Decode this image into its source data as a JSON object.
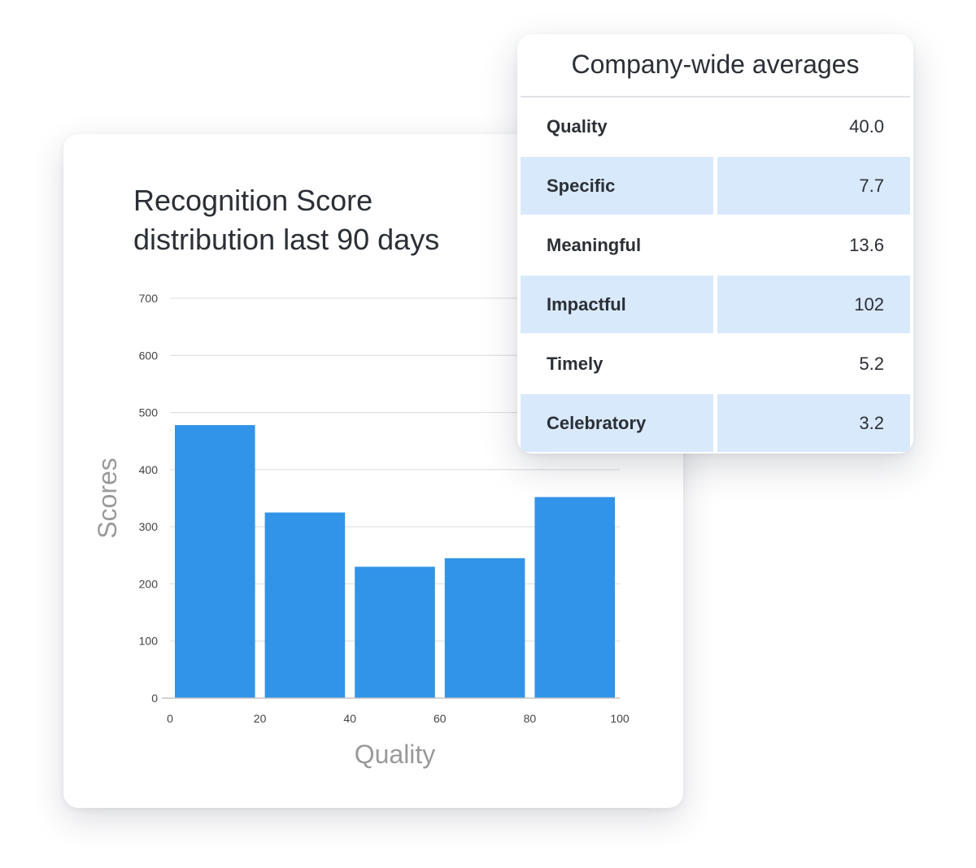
{
  "chart_card": {
    "title": "Recognition Score\ndistribution last 90 days"
  },
  "chart_data": {
    "type": "bar",
    "title": "Recognition Score\ndistribution last 90 days",
    "xlabel": "Quality",
    "ylabel": "Scores",
    "bins": [
      {
        "from": 0,
        "to": 20,
        "value": 478
      },
      {
        "from": 20,
        "to": 40,
        "value": 325
      },
      {
        "from": 40,
        "to": 60,
        "value": 230
      },
      {
        "from": 60,
        "to": 80,
        "value": 245
      },
      {
        "from": 80,
        "to": 100,
        "value": 352
      }
    ],
    "x_ticks": [
      "0",
      "20",
      "40",
      "60",
      "80",
      "100"
    ],
    "y_ticks": [
      "0",
      "100",
      "200",
      "300",
      "400",
      "500",
      "600",
      "700"
    ],
    "xlim": [
      0,
      100
    ],
    "ylim": [
      0,
      700
    ],
    "grid": true,
    "bar_color": "#3194e8"
  },
  "averages": {
    "title": "Company-wide averages",
    "rows": [
      {
        "label": "Quality",
        "value": "40.0",
        "shaded": false
      },
      {
        "label": "Specific",
        "value": "7.7",
        "shaded": true
      },
      {
        "label": "Meaningful",
        "value": "13.6",
        "shaded": false
      },
      {
        "label": "Impactful",
        "value": "102",
        "shaded": true
      },
      {
        "label": "Timely",
        "value": "5.2",
        "shaded": false
      },
      {
        "label": "Celebratory",
        "value": "3.2",
        "shaded": true
      }
    ]
  }
}
